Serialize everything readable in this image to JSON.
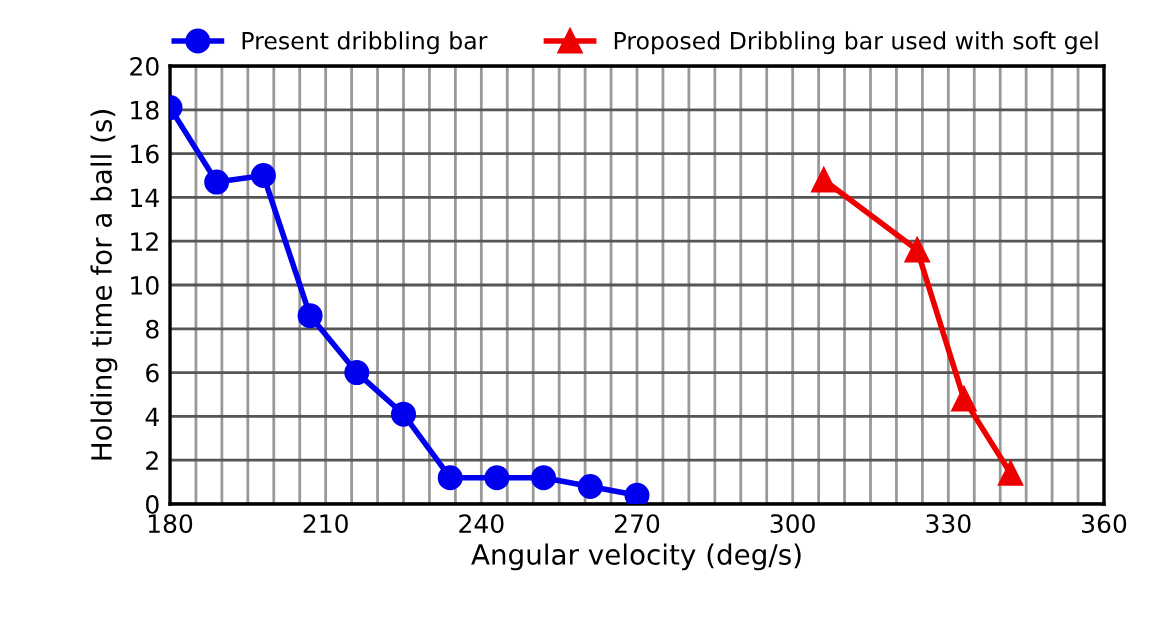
{
  "chart_data": {
    "type": "line",
    "xlabel": "Angular velocity (deg/s)",
    "ylabel": "Holding time for a ball (s)",
    "series": [
      {
        "name": "Present dribbling bar",
        "color": "#0000ee",
        "marker": "circle",
        "x": [
          180,
          189,
          198,
          207,
          216,
          225,
          234,
          243,
          252,
          261,
          270
        ],
        "values": [
          18.1,
          14.7,
          15.0,
          8.6,
          6.0,
          4.1,
          1.2,
          1.2,
          1.2,
          0.8,
          0.4
        ]
      },
      {
        "name": "Proposed Dribbling bar used with soft gel",
        "color": "#ee0000",
        "marker": "triangle",
        "x": [
          306,
          324,
          333,
          342
        ],
        "values": [
          14.8,
          11.6,
          4.8,
          1.4
        ]
      }
    ],
    "xlim": [
      180,
      360
    ],
    "xticks": [
      180,
      210,
      240,
      270,
      300,
      330,
      360
    ],
    "ylim": [
      0,
      20
    ],
    "yticks": [
      0,
      2,
      4,
      6,
      8,
      10,
      12,
      14,
      16,
      18,
      20
    ],
    "grid": true,
    "legend": "top",
    "line_style": "solid"
  }
}
